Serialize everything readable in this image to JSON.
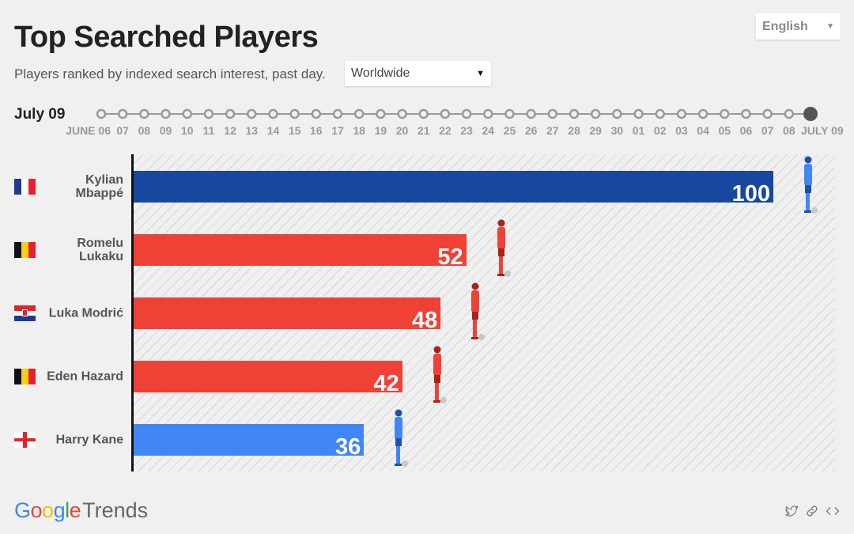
{
  "header": {
    "title": "Top Searched Players",
    "subtitle": "Players ranked by indexed search interest, past day.",
    "region_select": "Worldwide",
    "language_select": "English"
  },
  "timeline": {
    "current_date": "July 09",
    "dates": [
      "JUNE 06",
      "07",
      "08",
      "09",
      "10",
      "11",
      "12",
      "13",
      "14",
      "15",
      "16",
      "17",
      "18",
      "19",
      "20",
      "21",
      "22",
      "23",
      "24",
      "25",
      "26",
      "27",
      "28",
      "29",
      "30",
      "01",
      "02",
      "03",
      "04",
      "05",
      "06",
      "07",
      "08",
      "JULY 09"
    ],
    "selected_index": 33
  },
  "chart_data": {
    "type": "bar",
    "orientation": "horizontal",
    "title": "Top Searched Players",
    "xlim": [
      0,
      100
    ],
    "categories": [
      "Kylian Mbappé",
      "Romelu Lukaku",
      "Luka Modrić",
      "Eden Hazard",
      "Harry Kane"
    ],
    "names_display": [
      [
        "Kylian",
        "Mbappé"
      ],
      [
        "Romelu",
        "Lukaku"
      ],
      [
        "Luka Modrić"
      ],
      [
        "Eden Hazard"
      ],
      [
        "Harry Kane"
      ]
    ],
    "values": [
      100,
      52,
      48,
      42,
      36
    ],
    "countries": [
      "France",
      "Belgium",
      "Croatia",
      "Belgium",
      "England"
    ],
    "colors": [
      "#1847a0",
      "#ef4136",
      "#ef4136",
      "#ef4136",
      "#4285f4"
    ]
  },
  "footer": {
    "logo_google": "Google",
    "logo_trends": "Trends",
    "icons": [
      "twitter-icon",
      "link-icon",
      "embed-icon"
    ]
  }
}
